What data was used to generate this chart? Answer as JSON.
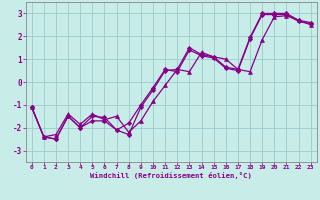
{
  "xlabel": "Windchill (Refroidissement éolien,°C)",
  "bg_color": "#c8ece8",
  "line_color": "#880088",
  "grid_color": "#99cccc",
  "xlim": [
    -0.5,
    23.5
  ],
  "ylim": [
    -3.5,
    3.5
  ],
  "xticks": [
    0,
    1,
    2,
    3,
    4,
    5,
    6,
    7,
    8,
    9,
    10,
    11,
    12,
    13,
    14,
    15,
    16,
    17,
    18,
    19,
    20,
    21,
    22,
    23
  ],
  "yticks": [
    -3,
    -2,
    -1,
    0,
    1,
    2,
    3
  ],
  "line1_x": [
    0,
    1,
    2,
    3,
    4,
    5,
    6,
    7,
    8,
    9,
    10,
    11,
    12,
    13,
    14,
    15,
    16,
    17,
    18,
    19,
    20,
    21,
    22,
    23
  ],
  "line1_y": [
    -1.1,
    -2.4,
    -2.5,
    -1.5,
    -2.0,
    -1.7,
    -1.7,
    -2.1,
    -2.3,
    -1.1,
    -0.35,
    0.5,
    0.55,
    1.5,
    1.2,
    1.1,
    0.65,
    0.55,
    1.95,
    3.0,
    3.0,
    3.0,
    2.7,
    2.6
  ],
  "line2_x": [
    0,
    1,
    2,
    3,
    4,
    5,
    6,
    7,
    8,
    9,
    10,
    11,
    12,
    13,
    14,
    15,
    16,
    17,
    18,
    19,
    20,
    21,
    22,
    23
  ],
  "line2_y": [
    -1.1,
    -2.4,
    -2.5,
    -1.5,
    -2.0,
    -1.5,
    -1.55,
    -2.1,
    -1.8,
    -1.0,
    -0.25,
    0.55,
    0.45,
    1.4,
    1.15,
    1.05,
    0.6,
    0.5,
    1.9,
    2.95,
    2.95,
    2.95,
    2.65,
    2.55
  ],
  "line3_x": [
    0,
    1,
    2,
    3,
    4,
    5,
    6,
    7,
    8,
    9,
    10,
    11,
    12,
    13,
    14,
    15,
    16,
    17,
    18,
    19,
    20,
    21,
    22,
    23
  ],
  "line3_y": [
    -1.1,
    -2.4,
    -2.3,
    -1.4,
    -1.85,
    -1.4,
    -1.65,
    -1.5,
    -2.2,
    -1.7,
    -0.85,
    -0.15,
    0.55,
    0.45,
    1.3,
    1.1,
    1.0,
    0.55,
    0.45,
    1.85,
    2.85,
    2.9,
    2.7,
    2.5
  ]
}
